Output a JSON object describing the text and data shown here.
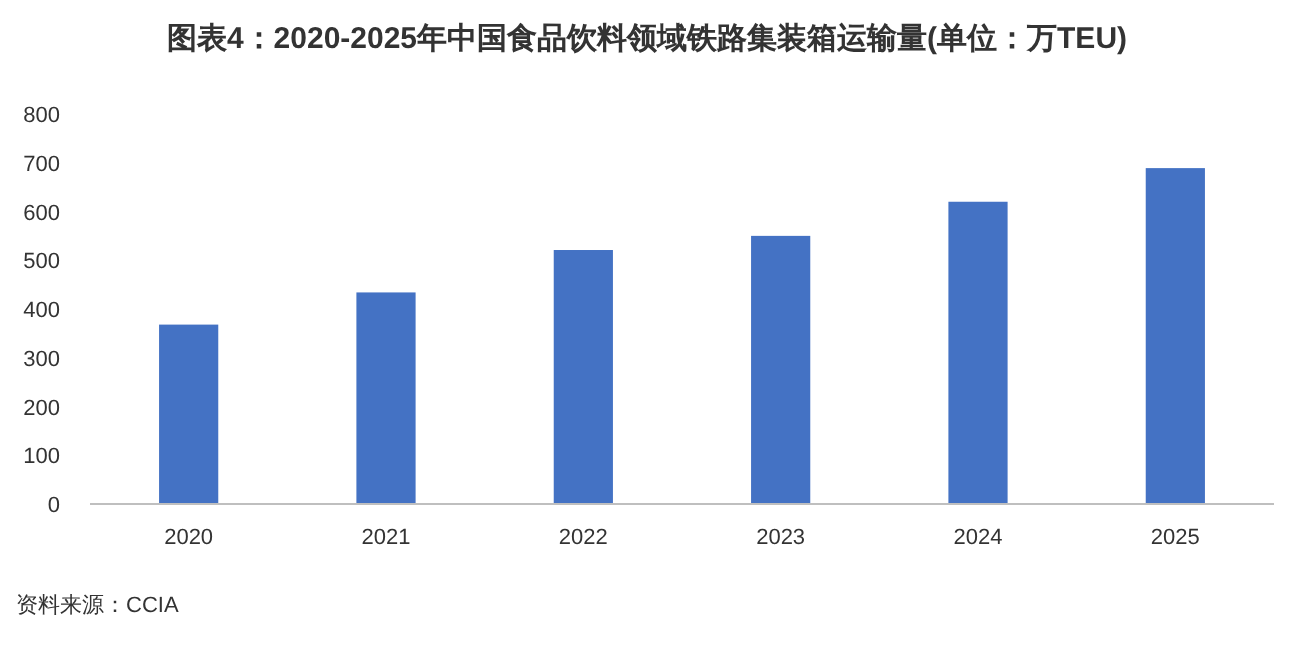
{
  "chart_data": {
    "type": "bar",
    "title": "图表4：2020-2025年中国食品饮料领域铁路集装箱运输量(单位：万TEU)",
    "categories": [
      "2020",
      "2021",
      "2022",
      "2023",
      "2024",
      "2025"
    ],
    "values": [
      368,
      434,
      521,
      550,
      620,
      689
    ],
    "color": "#4472c4",
    "ylim": [
      0,
      800
    ],
    "yticks": [
      0,
      100,
      200,
      300,
      400,
      500,
      600,
      700,
      800
    ],
    "grid": false,
    "annotations": [
      "资料来源：CCIA"
    ]
  }
}
